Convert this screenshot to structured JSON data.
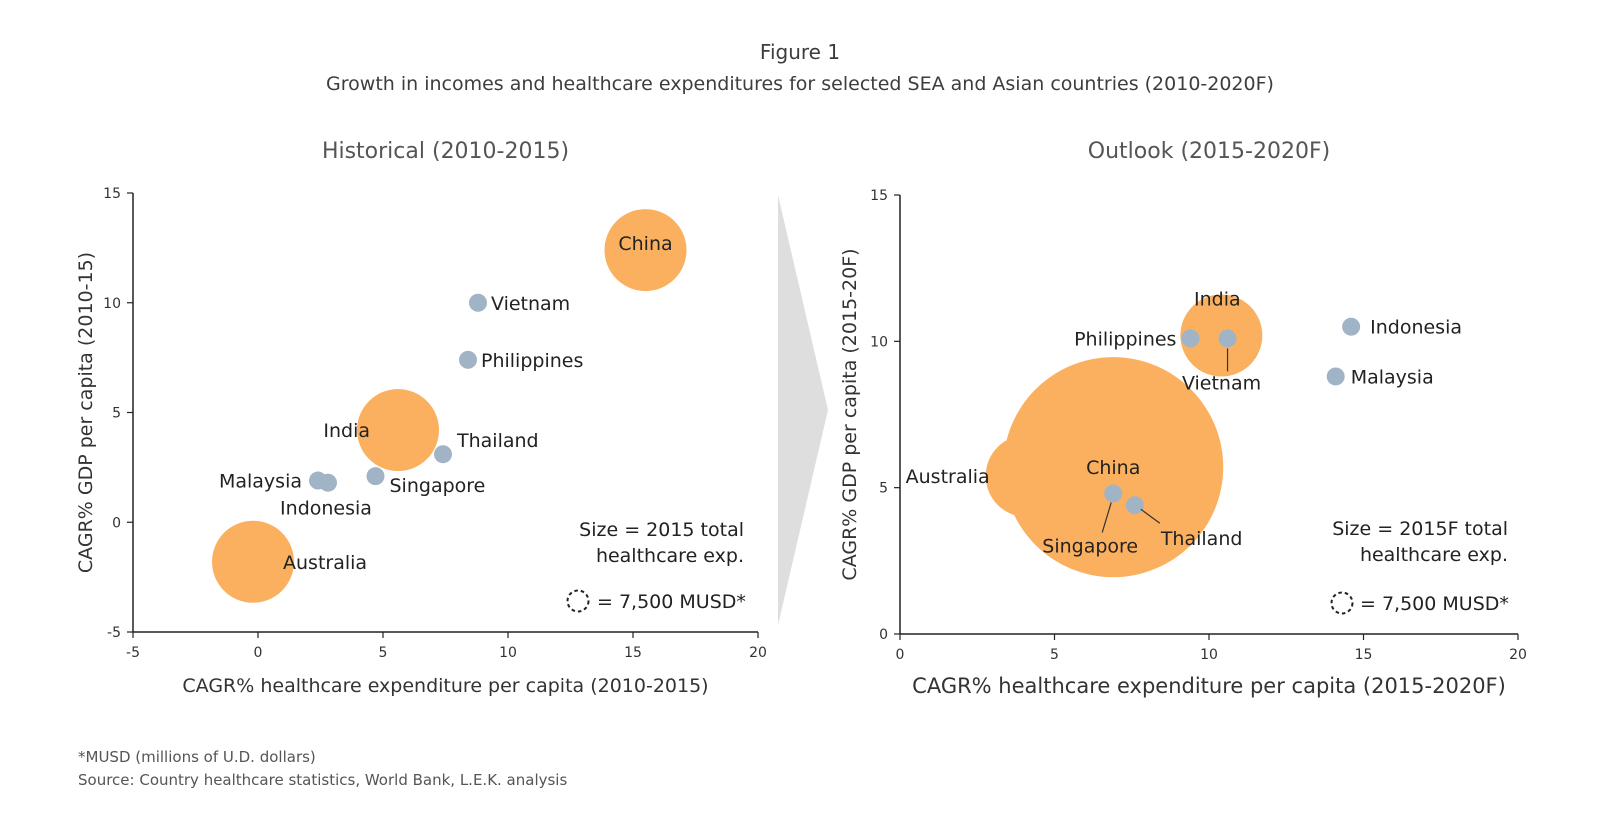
{
  "figure": {
    "title": "Figure 1",
    "subtitle": "Growth in incomes and healthcare expenditures for selected SEA and Asian countries (2010-2020F)",
    "footnote": "*MUSD (millions of U.D. dollars)",
    "source": "Source: Country healthcare statistics, World Bank, L.E.K. analysis"
  },
  "colors": {
    "large_bubble": "#fbb05f",
    "small_bubble": "#a0b4c5",
    "axis": "#222222",
    "arrow": "#dedede"
  },
  "chart_data": [
    {
      "type": "scatter",
      "title": "Historical (2010-2015)",
      "xlabel": "CAGR% healthcare expenditure per capita (2010-2015)",
      "ylabel": "CAGR% GDP per capita (2010-15)",
      "xlim": [
        -5,
        20
      ],
      "ylim": [
        -5,
        15
      ],
      "xticks": [
        -5,
        0,
        5,
        10,
        15,
        20
      ],
      "yticks": [
        -5,
        0,
        5,
        10,
        15
      ],
      "size_legend": [
        "Size  = 2015 total",
        "healthcare exp.",
        "= 7,500 MUSD*"
      ],
      "points": [
        {
          "name": "China",
          "x": 15.5,
          "y": 12.4,
          "size": "large"
        },
        {
          "name": "Vietnam",
          "x": 8.8,
          "y": 10.0,
          "size": "small"
        },
        {
          "name": "Philippines",
          "x": 8.4,
          "y": 7.4,
          "size": "small"
        },
        {
          "name": "India",
          "x": 5.6,
          "y": 4.2,
          "size": "large"
        },
        {
          "name": "Thailand",
          "x": 7.4,
          "y": 3.1,
          "size": "small"
        },
        {
          "name": "Singapore",
          "x": 4.7,
          "y": 2.1,
          "size": "small"
        },
        {
          "name": "Malaysia",
          "x": 2.4,
          "y": 1.9,
          "size": "small"
        },
        {
          "name": "Indonesia",
          "x": 2.8,
          "y": 1.8,
          "size": "small"
        },
        {
          "name": "Australia",
          "x": -0.2,
          "y": -1.8,
          "size": "large"
        }
      ]
    },
    {
      "type": "scatter",
      "title": "Outlook (2015-2020F)",
      "xlabel": "CAGR% healthcare expenditure per capita (2015-2020F)",
      "ylabel": "CAGR% GDP per capita (2015-20F)",
      "xlim": [
        0,
        20
      ],
      "ylim": [
        0,
        15
      ],
      "xticks": [
        0,
        5,
        10,
        15,
        20
      ],
      "yticks": [
        0,
        5,
        10,
        15
      ],
      "size_legend": [
        "Size  = 2015F total",
        "healthcare exp.",
        "= 7,500 MUSD*"
      ],
      "points": [
        {
          "name": "India",
          "x": 10.4,
          "y": 10.2,
          "size": "large"
        },
        {
          "name": "Philippines",
          "x": 9.4,
          "y": 10.1,
          "size": "small"
        },
        {
          "name": "Vietnam",
          "x": 10.6,
          "y": 10.1,
          "size": "small"
        },
        {
          "name": "Indonesia",
          "x": 14.6,
          "y": 10.5,
          "size": "small"
        },
        {
          "name": "Malaysia",
          "x": 14.1,
          "y": 8.8,
          "size": "small"
        },
        {
          "name": "Australia",
          "x": 4.1,
          "y": 5.4,
          "size": "large"
        },
        {
          "name": "China",
          "x": 6.9,
          "y": 5.7,
          "size": "xlarge"
        },
        {
          "name": "Singapore",
          "x": 6.9,
          "y": 4.8,
          "size": "small"
        },
        {
          "name": "Thailand",
          "x": 7.6,
          "y": 4.4,
          "size": "small"
        }
      ]
    }
  ]
}
